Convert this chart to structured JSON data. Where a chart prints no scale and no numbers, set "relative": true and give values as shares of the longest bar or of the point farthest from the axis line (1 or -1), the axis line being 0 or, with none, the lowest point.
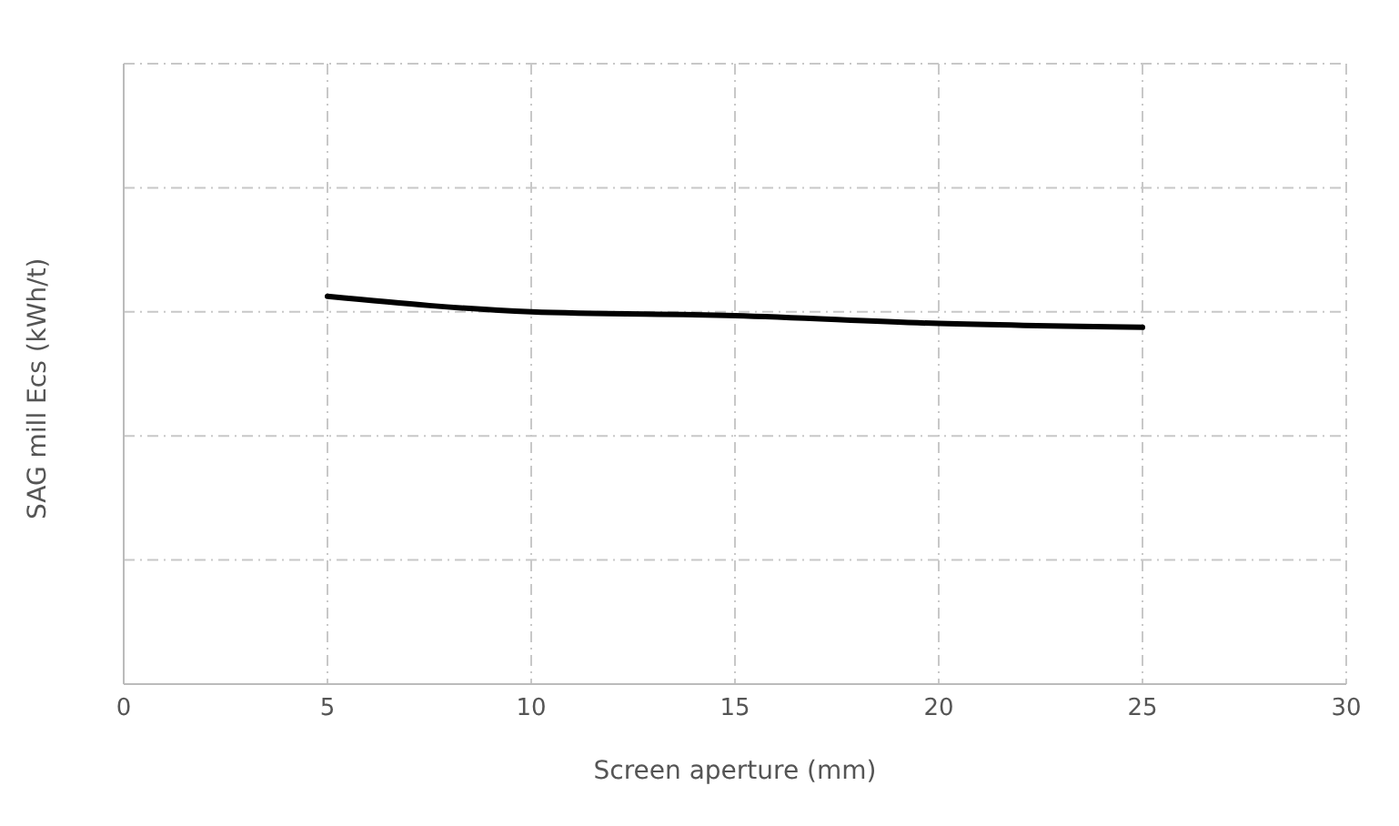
{
  "chart_data": {
    "type": "line",
    "xlabel": "Screen aperture (mm)",
    "ylabel": "SAG mill Ecs (kWh/t)",
    "relative": true,
    "x": [
      5,
      10,
      15,
      20,
      25
    ],
    "series": [
      {
        "color": "#000000",
        "values": [
          1,
          0.96,
          0.95,
          0.93,
          0.92
        ]
      }
    ],
    "xlim": [
      0,
      30
    ],
    "xticks": [
      0,
      5,
      10,
      15,
      20,
      25,
      30
    ],
    "grid": true,
    "legend": false,
    "marker": "none",
    "line_style": "solid"
  }
}
